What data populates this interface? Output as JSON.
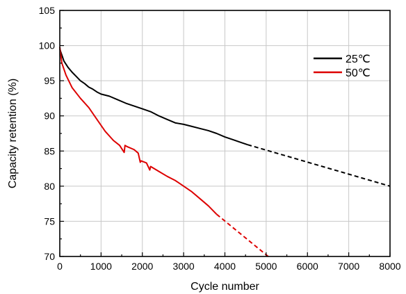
{
  "chart_data": {
    "type": "line",
    "title": "",
    "xlabel": "Cycle number",
    "ylabel": "Capacity retention (%)",
    "xlim": [
      0,
      8000
    ],
    "ylim": [
      70,
      105
    ],
    "xticks": [
      0,
      1000,
      2000,
      3000,
      4000,
      5000,
      6000,
      7000,
      8000
    ],
    "yticks": [
      70,
      75,
      80,
      85,
      90,
      95,
      100,
      105
    ],
    "grid": true,
    "legend_position": "top-right",
    "series": [
      {
        "name": "25℃",
        "color": "#000000",
        "style": "solid",
        "x": [
          0,
          100,
          200,
          300,
          400,
          500,
          600,
          700,
          800,
          900,
          1000,
          1200,
          1400,
          1600,
          1800,
          2000,
          2200,
          2400,
          2600,
          2800,
          3000,
          3200,
          3400,
          3600,
          3800,
          4000,
          4200,
          4400,
          4550
        ],
        "y": [
          99.5,
          97.8,
          96.9,
          96.2,
          95.6,
          95.0,
          94.6,
          94.1,
          93.8,
          93.4,
          93.1,
          92.8,
          92.3,
          91.8,
          91.4,
          91.0,
          90.6,
          90.0,
          89.5,
          89.0,
          88.8,
          88.5,
          88.2,
          87.9,
          87.5,
          87.0,
          86.6,
          86.2,
          85.9
        ]
      },
      {
        "name": "",
        "color": "#000000",
        "style": "dashed",
        "x": [
          4550,
          8000
        ],
        "y": [
          85.9,
          80.0
        ]
      },
      {
        "name": "50℃",
        "color": "#dd0000",
        "style": "solid",
        "x": [
          0,
          50,
          150,
          300,
          500,
          700,
          900,
          1100,
          1300,
          1450,
          1560,
          1580,
          1640,
          1800,
          1900,
          1950,
          1970,
          2100,
          2180,
          2200,
          2400,
          2600,
          2800,
          3000,
          3200,
          3400,
          3600,
          3800
        ],
        "y": [
          99.8,
          97.5,
          95.8,
          94.0,
          92.5,
          91.2,
          89.5,
          87.8,
          86.5,
          85.8,
          84.8,
          85.8,
          85.6,
          85.2,
          84.7,
          83.4,
          83.6,
          83.3,
          82.3,
          82.8,
          82.1,
          81.4,
          80.8,
          80.0,
          79.2,
          78.2,
          77.2,
          76.0
        ]
      },
      {
        "name": "",
        "color": "#dd0000",
        "style": "dashed",
        "x": [
          3800,
          5050
        ],
        "y": [
          76.0,
          70.0
        ]
      }
    ]
  }
}
